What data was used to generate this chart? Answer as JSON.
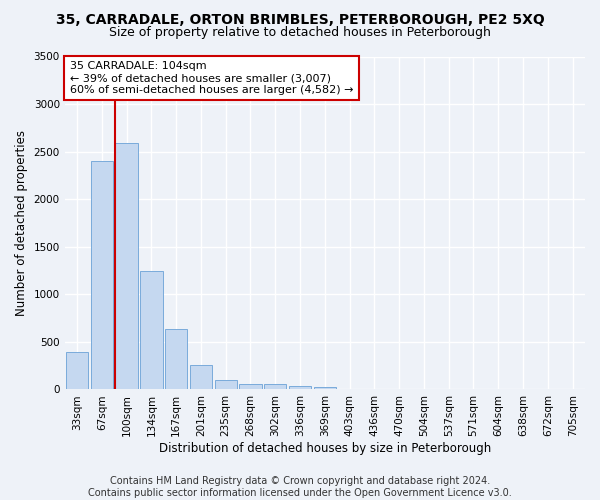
{
  "title": "35, CARRADALE, ORTON BRIMBLES, PETERBOROUGH, PE2 5XQ",
  "subtitle": "Size of property relative to detached houses in Peterborough",
  "xlabel": "Distribution of detached houses by size in Peterborough",
  "ylabel": "Number of detached properties",
  "categories": [
    "33sqm",
    "67sqm",
    "100sqm",
    "134sqm",
    "167sqm",
    "201sqm",
    "235sqm",
    "268sqm",
    "302sqm",
    "336sqm",
    "369sqm",
    "403sqm",
    "436sqm",
    "470sqm",
    "504sqm",
    "537sqm",
    "571sqm",
    "604sqm",
    "638sqm",
    "672sqm",
    "705sqm"
  ],
  "values": [
    390,
    2400,
    2590,
    1240,
    640,
    255,
    100,
    60,
    55,
    40,
    30,
    0,
    0,
    0,
    0,
    0,
    0,
    0,
    0,
    0,
    0
  ],
  "bar_color": "#c5d8f0",
  "bar_edge_color": "#7aabdb",
  "vline_color": "#cc0000",
  "vline_pos": 1.55,
  "annotation_text": "35 CARRADALE: 104sqm\n← 39% of detached houses are smaller (3,007)\n60% of semi-detached houses are larger (4,582) →",
  "annotation_box_facecolor": "#ffffff",
  "annotation_box_edgecolor": "#cc0000",
  "ylim": [
    0,
    3500
  ],
  "yticks": [
    0,
    500,
    1000,
    1500,
    2000,
    2500,
    3000,
    3500
  ],
  "footer": "Contains HM Land Registry data © Crown copyright and database right 2024.\nContains public sector information licensed under the Open Government Licence v3.0.",
  "background_color": "#eef2f8",
  "plot_background_color": "#eef2f8",
  "grid_color": "#ffffff",
  "title_fontsize": 10,
  "subtitle_fontsize": 9,
  "axis_label_fontsize": 8.5,
  "tick_fontsize": 7.5,
  "annotation_fontsize": 8,
  "footer_fontsize": 7
}
